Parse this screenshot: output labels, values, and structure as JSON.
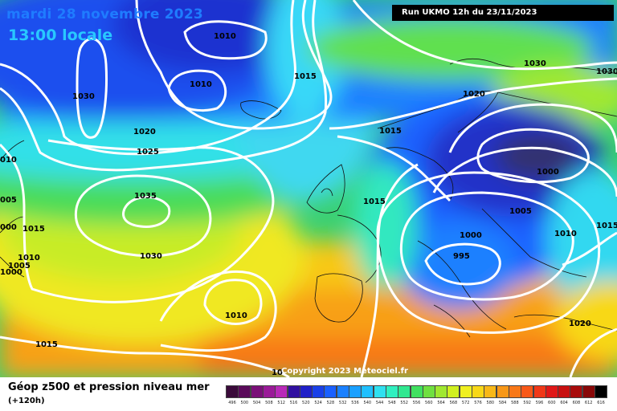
{
  "header": {
    "date_line": "mardi 28 novembre 2023",
    "time_line": "13:00 locale",
    "run_info": "Run UKMO 12h du 23/11/2023"
  },
  "copyright": "Copyright 2023 Meteociel.fr",
  "footer": {
    "title": "Géop z500 et pression niveau mer",
    "subtitle": "(+120h)"
  },
  "legend": {
    "labels": [
      "496",
      "500",
      "504",
      "508",
      "512",
      "516",
      "520",
      "524",
      "528",
      "532",
      "536",
      "540",
      "544",
      "548",
      "552",
      "556",
      "560",
      "564",
      "568",
      "572",
      "576",
      "580",
      "584",
      "588",
      "592",
      "596",
      "600",
      "604",
      "608",
      "612",
      "616"
    ],
    "colors": [
      "#3a0a3a",
      "#5a0a5a",
      "#7a1078",
      "#9a1a98",
      "#b82ab8",
      "#3010a0",
      "#2020c8",
      "#1a40e8",
      "#1a60ff",
      "#1a80ff",
      "#1aa0ff",
      "#20c0ff",
      "#30e0f0",
      "#30f0c0",
      "#30e890",
      "#40e060",
      "#70e040",
      "#a0e830",
      "#d0f020",
      "#f0f020",
      "#f8d818",
      "#f8b818",
      "#f89818",
      "#f87818",
      "#f85818",
      "#f03818",
      "#e01818",
      "#c81010",
      "#a80c0c",
      "#880808",
      "#000000"
    ]
  },
  "pressure_labels": [
    {
      "text": "1010"
    },
    {
      "text": "1010"
    },
    {
      "text": "1030"
    },
    {
      "text": "1015"
    },
    {
      "text": "1020"
    },
    {
      "text": "1025"
    },
    {
      "text": "010"
    },
    {
      "text": "1035"
    },
    {
      "text": "005"
    },
    {
      "text": "000"
    },
    {
      "text": "1015"
    },
    {
      "text": "1010"
    },
    {
      "text": "1005"
    },
    {
      "text": "1000"
    },
    {
      "text": "1030"
    },
    {
      "text": "1010"
    },
    {
      "text": "1015"
    },
    {
      "text": "1015"
    },
    {
      "text": "1015"
    },
    {
      "text": "1030"
    },
    {
      "text": "1030"
    },
    {
      "text": "1020"
    },
    {
      "text": "1000"
    },
    {
      "text": "1005"
    },
    {
      "text": "1015"
    },
    {
      "text": "1000"
    },
    {
      "text": "1010"
    },
    {
      "text": "995"
    },
    {
      "text": "1020"
    },
    {
      "text": "10"
    }
  ]
}
